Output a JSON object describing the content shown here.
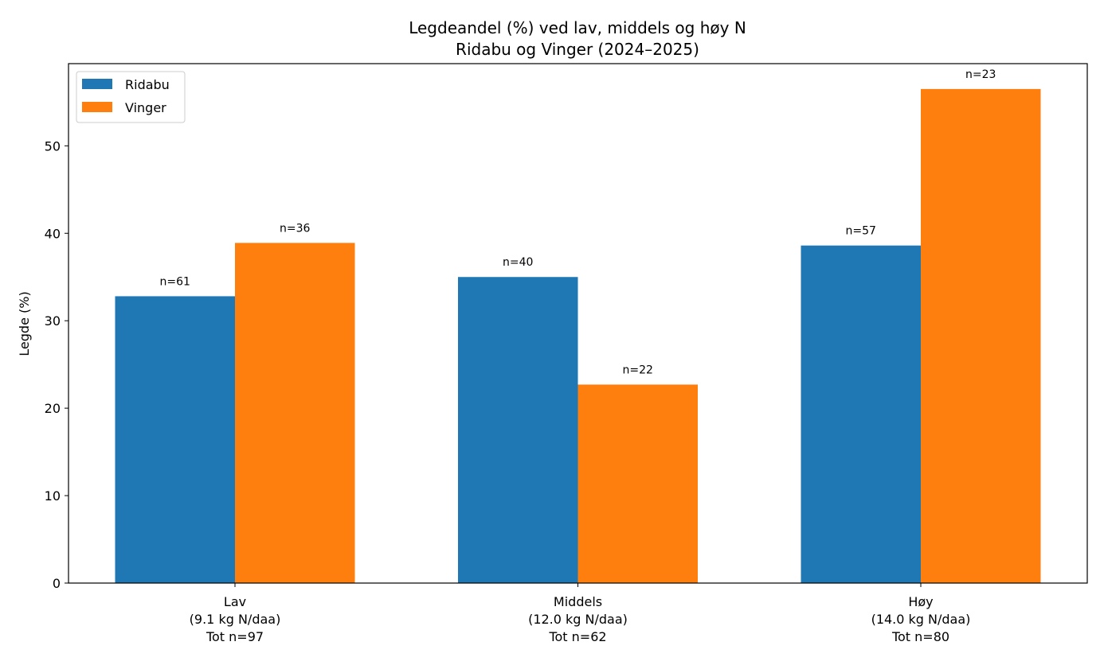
{
  "chart_data": {
    "type": "bar",
    "title": "Legdeandel (%) ved lav, middels og høy N",
    "subtitle": "Ridabu og Vinger (2024–2025)",
    "xlabel": "",
    "ylabel": "Legde (%)",
    "ylim": [
      0,
      59.4
    ],
    "yticks": [
      "0",
      "10",
      "20",
      "30",
      "40",
      "50"
    ],
    "categories": [
      [
        "Lav",
        "(9.1 kg N/daa)",
        "Tot n=97"
      ],
      [
        "Middels",
        "(12.0 kg N/daa)",
        "Tot n=62"
      ],
      [
        "Høy",
        "(14.0 kg N/daa)",
        "Tot n=80"
      ]
    ],
    "series": [
      {
        "name": "Ridabu",
        "color": "#1f77b4",
        "values": [
          32.8,
          35.0,
          38.6
        ],
        "labels": [
          "n=61",
          "n=40",
          "n=57"
        ]
      },
      {
        "name": "Vinger",
        "color": "#ff7f0e",
        "values": [
          38.9,
          22.7,
          56.5
        ],
        "labels": [
          "n=36",
          "n=22",
          "n=23"
        ]
      }
    ],
    "grid": false,
    "legend": "top-left"
  }
}
